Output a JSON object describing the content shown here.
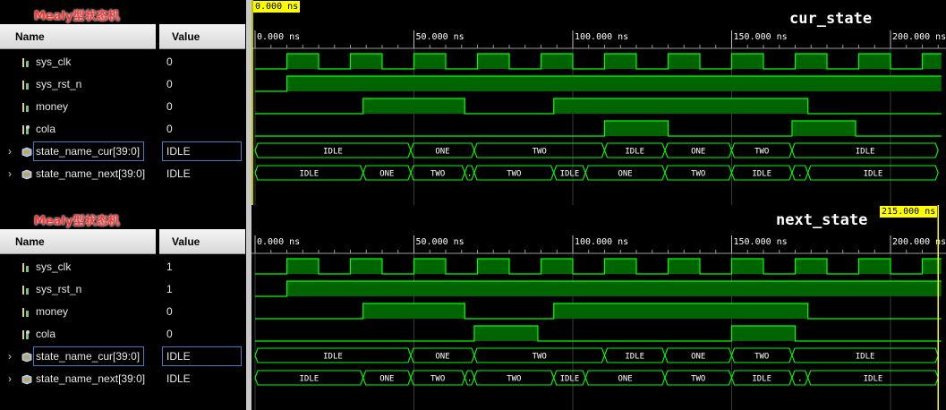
{
  "columns": {
    "name": "Name",
    "value": "Value"
  },
  "panels": [
    {
      "title": "Mealy型状态机",
      "annotation": "cur_state",
      "cursor_label": "0.000 ns",
      "cursor_time": 0,
      "cursor_label_side": "right",
      "signals": [
        {
          "name": "sys_clk",
          "value": "0",
          "icon": "bit-signal-icon",
          "expandable": false
        },
        {
          "name": "sys_rst_n",
          "value": "0",
          "icon": "bit-signal-icon",
          "expandable": false
        },
        {
          "name": "money",
          "value": "0",
          "icon": "bit-signal-icon",
          "expandable": false
        },
        {
          "name": "cola",
          "value": "0",
          "icon": "bit-signal-out-icon",
          "expandable": false
        },
        {
          "name": "state_name_cur[39:0]",
          "value": "IDLE",
          "icon": "bus-signal-icon",
          "expandable": true,
          "selected": true
        },
        {
          "name": "state_name_next[39:0]",
          "value": "IDLE",
          "icon": "bus-signal-icon",
          "expandable": true
        }
      ],
      "clk_start_low": true
    },
    {
      "title": "Mealy型状态机",
      "annotation": "next_state",
      "cursor_label": "215.000 ns",
      "cursor_time": 215,
      "cursor_label_side": "left",
      "signals": [
        {
          "name": "sys_clk",
          "value": "1",
          "icon": "bit-signal-icon",
          "expandable": false
        },
        {
          "name": "sys_rst_n",
          "value": "1",
          "icon": "bit-signal-icon",
          "expandable": false
        },
        {
          "name": "money",
          "value": "0",
          "icon": "bit-signal-icon",
          "expandable": false
        },
        {
          "name": "cola",
          "value": "0",
          "icon": "bit-signal-out-icon",
          "expandable": false
        },
        {
          "name": "state_name_cur[39:0]",
          "value": "IDLE",
          "icon": "bus-signal-icon",
          "expandable": true,
          "selected": true
        },
        {
          "name": "state_name_next[39:0]",
          "value": "IDLE",
          "icon": "bus-signal-icon",
          "expandable": true
        }
      ]
    }
  ],
  "time_axis": {
    "ticks": [
      {
        "t": 0,
        "label": "0.000 ns"
      },
      {
        "t": 50,
        "label": "50.000 ns"
      },
      {
        "t": 100,
        "label": "100.000 ns"
      },
      {
        "t": 150,
        "label": "150.000 ns"
      },
      {
        "t": 200,
        "label": "200.000 ns"
      }
    ]
  },
  "waves": {
    "sys_clk_high": [
      [
        10,
        20
      ],
      [
        30,
        40
      ],
      [
        50,
        60
      ],
      [
        70,
        80
      ],
      [
        90,
        100
      ],
      [
        110,
        120
      ],
      [
        130,
        140
      ],
      [
        150,
        160
      ],
      [
        170,
        180
      ],
      [
        190,
        200
      ],
      [
        210,
        220
      ]
    ],
    "sys_rst_n_rise": 10,
    "money_high": [
      [
        34,
        66
      ],
      [
        94,
        174
      ]
    ],
    "panels": [
      {
        "cola_high": [
          [
            110,
            130
          ],
          [
            169,
            189
          ]
        ],
        "state_cur": [
          {
            "start": 0,
            "end": 49,
            "label": "IDLE"
          },
          {
            "start": 49,
            "end": 69,
            "label": "ONE"
          },
          {
            "start": 69,
            "end": 110,
            "label": "TWO"
          },
          {
            "start": 110,
            "end": 129,
            "label": "IDLE"
          },
          {
            "start": 129,
            "end": 150,
            "label": "ONE"
          },
          {
            "start": 150,
            "end": 169,
            "label": "TWO"
          },
          {
            "start": 169,
            "end": 215,
            "label": "IDLE"
          }
        ],
        "state_next": [
          {
            "start": 0,
            "end": 34,
            "label": "IDLE"
          },
          {
            "start": 34,
            "end": 49,
            "label": "ONE"
          },
          {
            "start": 49,
            "end": 66,
            "label": "TWO"
          },
          {
            "start": 66,
            "end": 69,
            "label": "."
          },
          {
            "start": 69,
            "end": 94,
            "label": "TWO"
          },
          {
            "start": 94,
            "end": 104,
            "label": "IDLE"
          },
          {
            "start": 104,
            "end": 129,
            "label": "ONE"
          },
          {
            "start": 129,
            "end": 150,
            "label": "TWO"
          },
          {
            "start": 150,
            "end": 169,
            "label": "IDLE"
          },
          {
            "start": 169,
            "end": 174,
            "label": "."
          },
          {
            "start": 174,
            "end": 215,
            "label": "IDLE"
          }
        ]
      },
      {
        "cola_high": [
          [
            69,
            89
          ],
          [
            150,
            170
          ]
        ],
        "state_cur": [
          {
            "start": 0,
            "end": 49,
            "label": "IDLE"
          },
          {
            "start": 49,
            "end": 69,
            "label": "ONE"
          },
          {
            "start": 69,
            "end": 110,
            "label": "TWO"
          },
          {
            "start": 110,
            "end": 129,
            "label": "IDLE"
          },
          {
            "start": 129,
            "end": 150,
            "label": "ONE"
          },
          {
            "start": 150,
            "end": 169,
            "label": "TWO"
          },
          {
            "start": 169,
            "end": 215,
            "label": "IDLE"
          }
        ],
        "state_next": [
          {
            "start": 0,
            "end": 34,
            "label": "IDLE"
          },
          {
            "start": 34,
            "end": 49,
            "label": "ONE"
          },
          {
            "start": 49,
            "end": 66,
            "label": "TWO"
          },
          {
            "start": 66,
            "end": 69,
            "label": "."
          },
          {
            "start": 69,
            "end": 94,
            "label": "TWO"
          },
          {
            "start": 94,
            "end": 104,
            "label": "IDLE"
          },
          {
            "start": 104,
            "end": 129,
            "label": "ONE"
          },
          {
            "start": 129,
            "end": 150,
            "label": "TWO"
          },
          {
            "start": 150,
            "end": 169,
            "label": "IDLE"
          },
          {
            "start": 169,
            "end": 174,
            "label": "."
          },
          {
            "start": 174,
            "end": 215,
            "label": "IDLE"
          }
        ]
      }
    ]
  },
  "colors": {
    "wave": "#00ff00",
    "wave_fill": "#006400",
    "grid": "#3a3a3a",
    "cursor": "#ffff00",
    "title": "#ff3030"
  }
}
